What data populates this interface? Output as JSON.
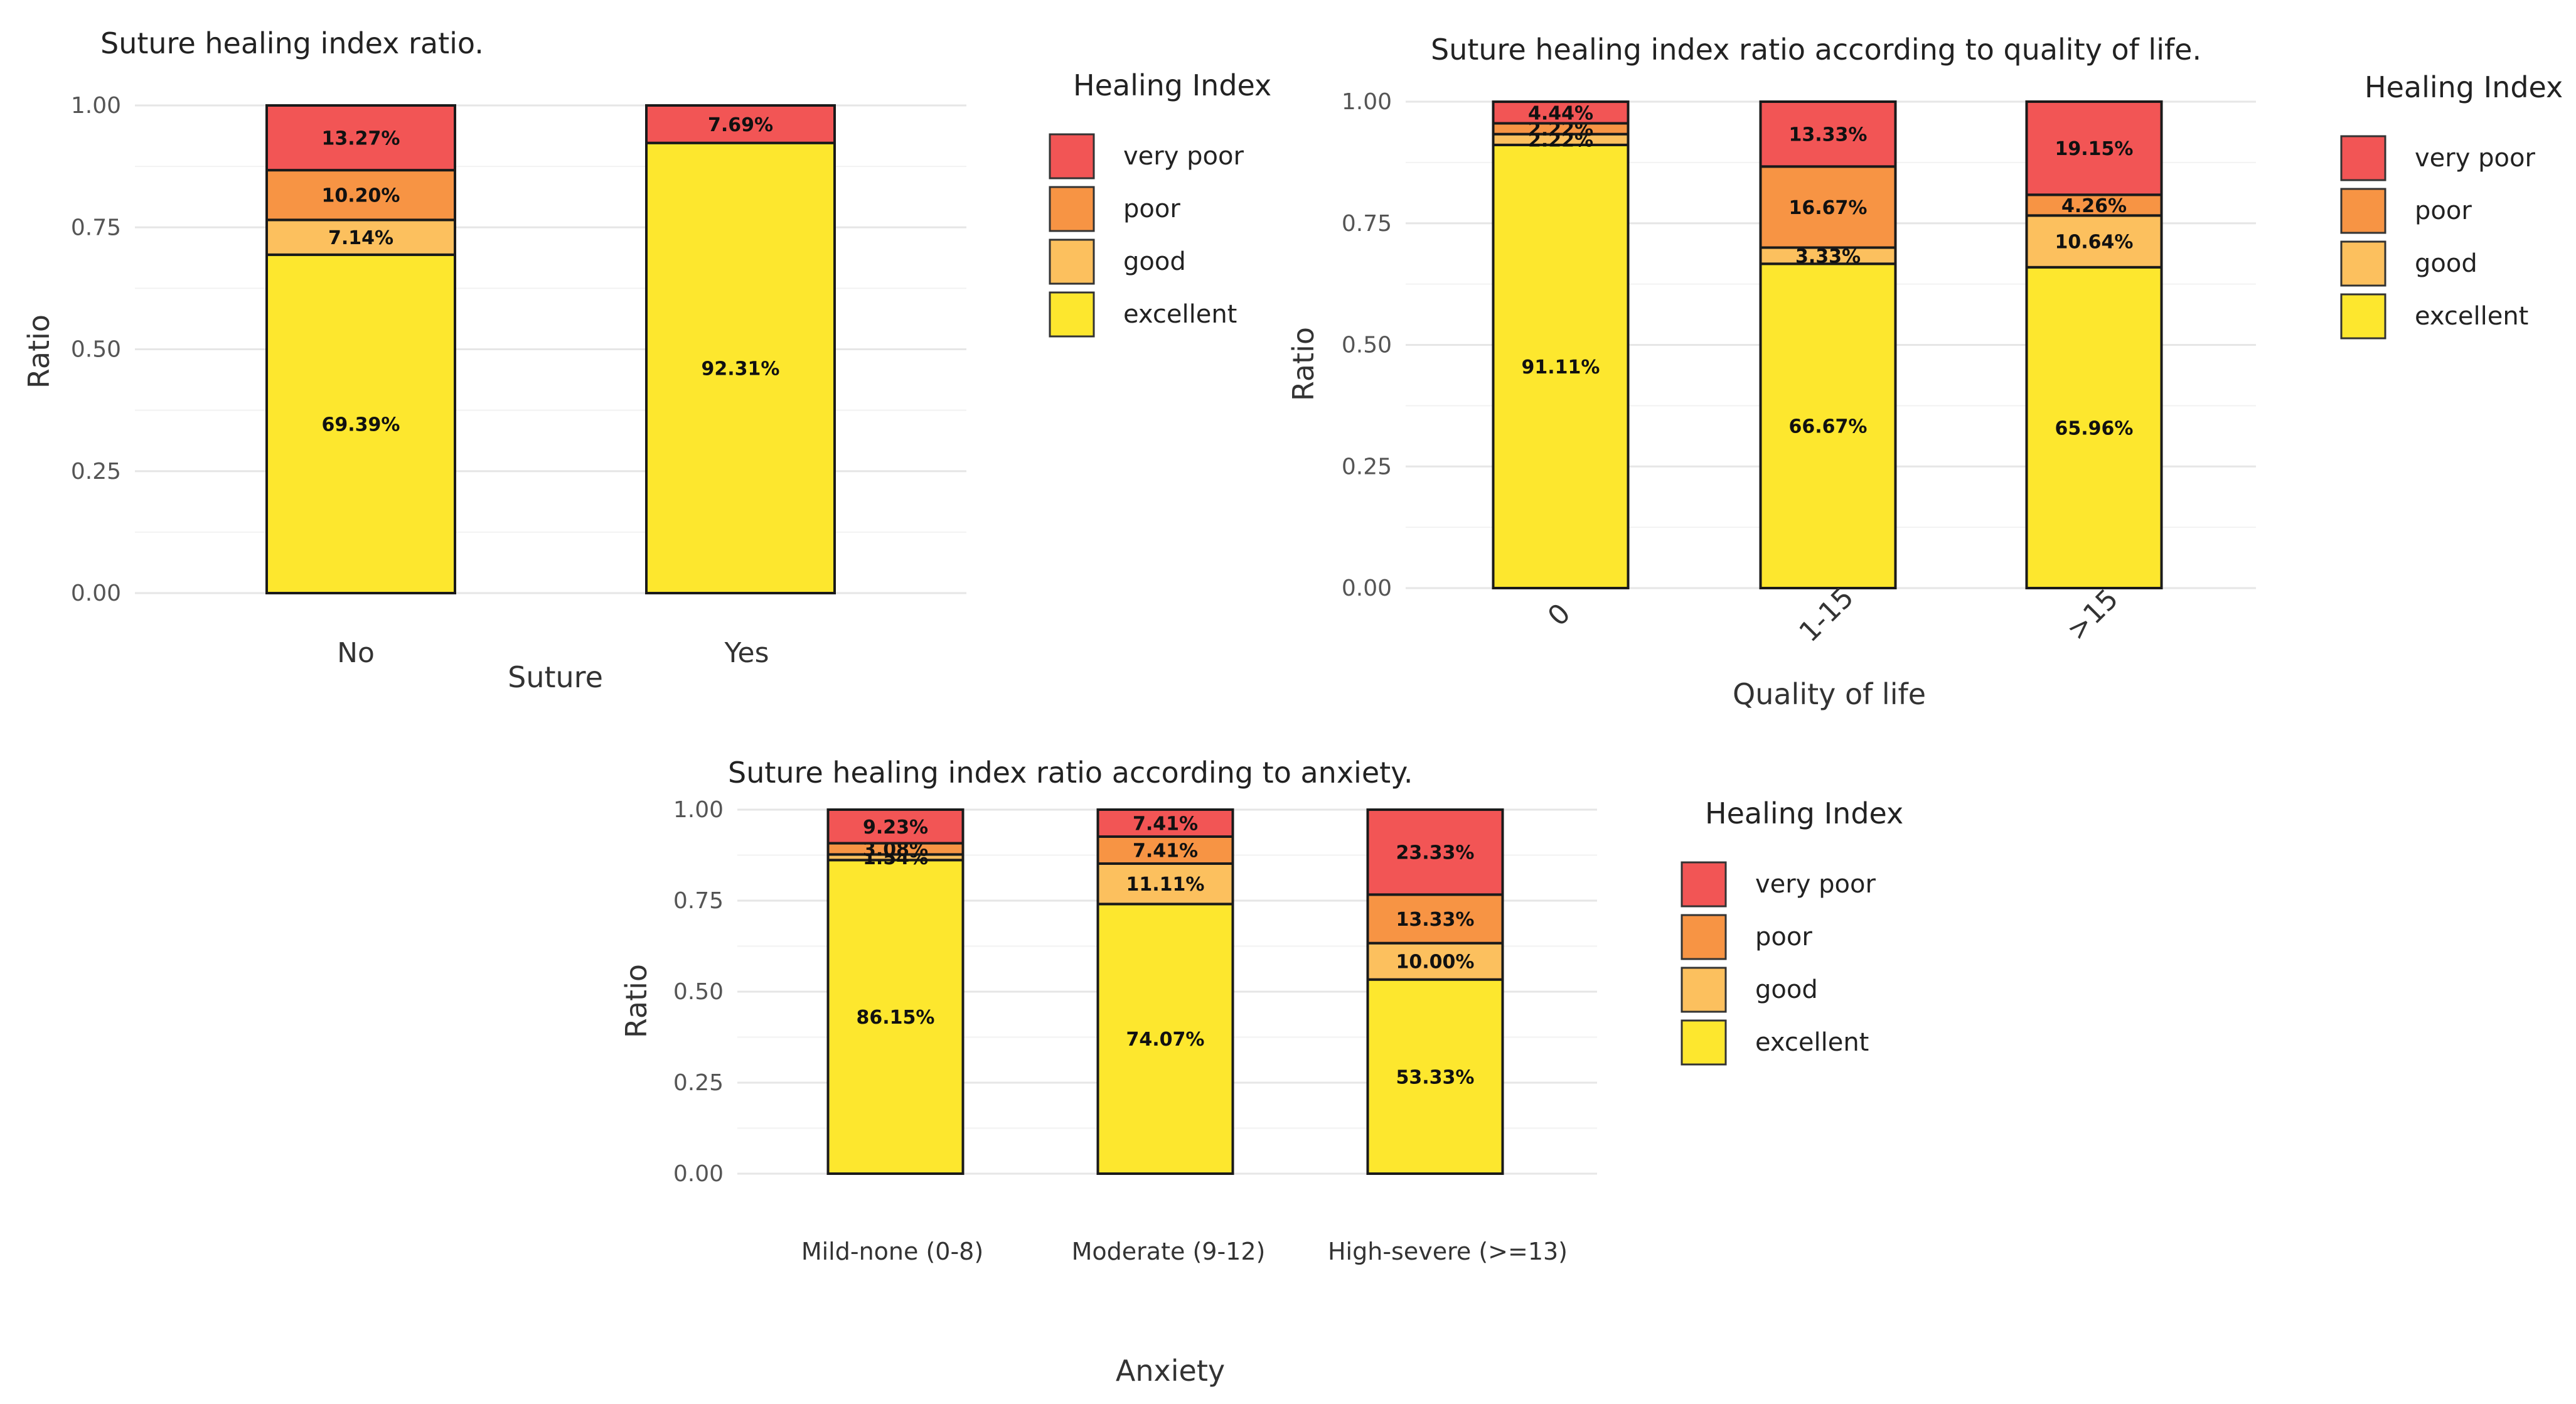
{
  "colors": {
    "very poor": "#f25555",
    "poor": "#f79444",
    "good": "#fcc05e",
    "excellent": "#fde72e"
  },
  "chart_data": [
    {
      "type": "bar",
      "stacked": true,
      "title": "Suture healing index ratio.",
      "xlabel": "Suture",
      "ylabel": "Ratio",
      "ylim": [
        0,
        1
      ],
      "yticks": [
        "0.00",
        "0.25",
        "0.50",
        "0.75",
        "1.00"
      ],
      "categories": [
        "No",
        "Yes"
      ],
      "legend_title": "Healing Index",
      "legend": [
        "very poor",
        "poor",
        "good",
        "excellent"
      ],
      "series": [
        {
          "name": "excellent",
          "values": [
            0.6939,
            0.9231
          ],
          "labels": [
            "69.39%",
            "92.31%"
          ]
        },
        {
          "name": "good",
          "values": [
            0.0714,
            0
          ],
          "labels": [
            "7.14%",
            ""
          ]
        },
        {
          "name": "poor",
          "values": [
            0.102,
            0
          ],
          "labels": [
            "10.20%",
            ""
          ]
        },
        {
          "name": "very poor",
          "values": [
            0.1327,
            0.0769
          ],
          "labels": [
            "13.27%",
            "7.69%"
          ]
        }
      ]
    },
    {
      "type": "bar",
      "stacked": true,
      "title": "Suture healing index ratio according to quality of life.",
      "xlabel": "Quality of life",
      "ylabel": "Ratio",
      "ylim": [
        0,
        1
      ],
      "yticks": [
        "0.00",
        "0.25",
        "0.50",
        "0.75",
        "1.00"
      ],
      "categories": [
        "0",
        "1-15",
        ">15"
      ],
      "legend_title": "Healing Index",
      "legend": [
        "very poor",
        "poor",
        "good",
        "excellent"
      ],
      "series": [
        {
          "name": "excellent",
          "values": [
            0.9111,
            0.6667,
            0.6596
          ],
          "labels": [
            "91.11%",
            "66.67%",
            "65.96%"
          ]
        },
        {
          "name": "good",
          "values": [
            0.0222,
            0.0333,
            0.1064
          ],
          "labels": [
            "2.22%",
            "3.33%",
            "10.64%"
          ]
        },
        {
          "name": "poor",
          "values": [
            0.0222,
            0.1667,
            0.0426
          ],
          "labels": [
            "2.22%",
            "16.67%",
            "4.26%"
          ]
        },
        {
          "name": "very poor",
          "values": [
            0.0444,
            0.1333,
            0.1915
          ],
          "labels": [
            "4.44%",
            "13.33%",
            "19.15%"
          ]
        }
      ]
    },
    {
      "type": "bar",
      "stacked": true,
      "title": "Suture healing index ratio according to anxiety.",
      "xlabel": "Anxiety",
      "ylabel": "Ratio",
      "ylim": [
        0,
        1
      ],
      "yticks": [
        "0.00",
        "0.25",
        "0.50",
        "0.75",
        "1.00"
      ],
      "categories": [
        "Mild-none (0-8)",
        "Moderate (9-12)",
        "High-severe  (>=13)"
      ],
      "legend_title": "Healing Index",
      "legend": [
        "very poor",
        "poor",
        "good",
        "excellent"
      ],
      "series": [
        {
          "name": "excellent",
          "values": [
            0.8615,
            0.7407,
            0.5333
          ],
          "labels": [
            "86.15%",
            "74.07%",
            "53.33%"
          ]
        },
        {
          "name": "good",
          "values": [
            0.0154,
            0.1111,
            0.1
          ],
          "labels": [
            "1.54%",
            "11.11%",
            "10.00%"
          ]
        },
        {
          "name": "poor",
          "values": [
            0.0308,
            0.0741,
            0.1333
          ],
          "labels": [
            "3.08%",
            "7.41%",
            "13.33%"
          ]
        },
        {
          "name": "very poor",
          "values": [
            0.0923,
            0.0741,
            0.2333
          ],
          "labels": [
            "9.23%",
            "7.41%",
            "23.33%"
          ]
        }
      ]
    }
  ]
}
